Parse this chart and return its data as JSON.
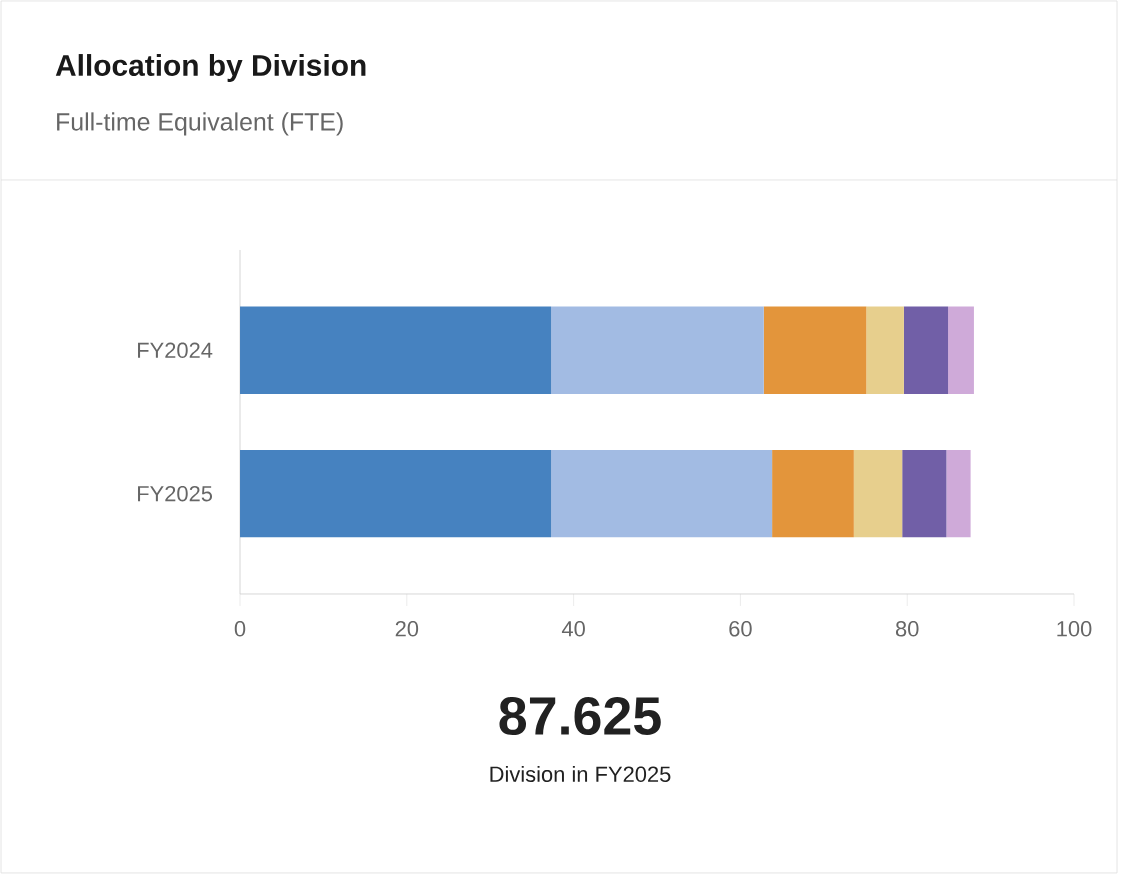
{
  "chart_data": {
    "type": "bar",
    "orientation": "horizontal",
    "stacked": true,
    "title": "Allocation by Division",
    "subtitle": "Full-time Equivalent (FTE)",
    "categories": [
      "FY2024",
      "FY2025"
    ],
    "series": [
      {
        "color": "#4682c0",
        "values": [
          37.3,
          37.3
        ]
      },
      {
        "color": "#a2bbe3",
        "values": [
          25.5,
          26.5
        ]
      },
      {
        "color": "#e3953b",
        "values": [
          12.3,
          9.8
        ]
      },
      {
        "color": "#e7cf8d",
        "values": [
          4.5,
          5.8
        ]
      },
      {
        "color": "#715fa7",
        "values": [
          5.3,
          5.3
        ]
      },
      {
        "color": "#cfaad9",
        "values": [
          3.1,
          2.9
        ]
      }
    ],
    "xlim": [
      0,
      100
    ],
    "xticks": [
      0,
      20,
      40,
      60,
      80,
      100
    ],
    "annotations": [
      "87.625",
      "Division in FY2025"
    ]
  }
}
